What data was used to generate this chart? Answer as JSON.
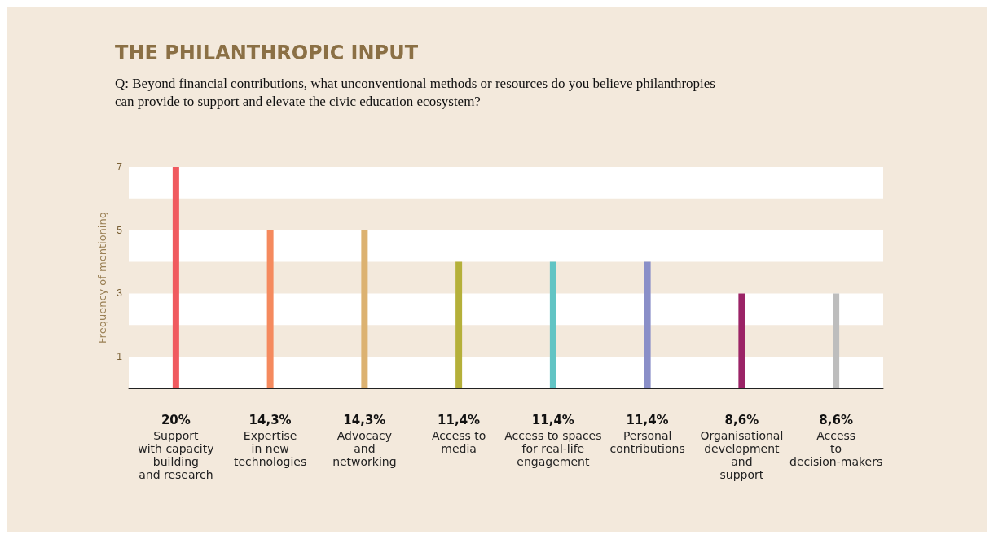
{
  "chart_data": {
    "type": "bar",
    "title": "THE PHILANTHROPIC INPUT",
    "subtitle": "Q: Beyond financial contributions, what unconventional methods or resources do you believe philanthropies\ncan provide to support and elevate the civic education ecosystem?",
    "ylabel": "Frequency of mentioning",
    "categories": [
      "Support\nwith capacity\nbuilding\nand research",
      "Expertise\nin new\ntechnologies",
      "Advocacy\nand\nnetworking",
      "Access to\nmedia",
      "Access to spaces\nfor real-life\nengagement",
      "Personal\ncontributions",
      "Organisational\ndevelopment\nand\nsupport",
      "Access\nto\ndecision-makers"
    ],
    "values": [
      7,
      5,
      5,
      4,
      4,
      4,
      3,
      3
    ],
    "annotations": [
      "20%",
      "14,3%",
      "14,3%",
      "11,4%",
      "11,4%",
      "11,4%",
      "8,6%",
      "8,6%"
    ],
    "colors": [
      "#f05a5f",
      "#f58a5e",
      "#dcb271",
      "#b5b03a",
      "#62c4c4",
      "#8a8fc8",
      "#9b2366",
      "#bdbdbd"
    ],
    "ylim": [
      0,
      7
    ],
    "yticks": [
      1,
      3,
      5,
      7
    ],
    "bands": [
      {
        "axis": "y",
        "from": 0,
        "to": 1,
        "color": "#ffffff"
      },
      {
        "axis": "y",
        "from": 2,
        "to": 3,
        "color": "#ffffff"
      },
      {
        "axis": "y",
        "from": 4,
        "to": 5,
        "color": "#ffffff"
      },
      {
        "axis": "y",
        "from": 6,
        "to": 7,
        "color": "#ffffff"
      }
    ]
  }
}
